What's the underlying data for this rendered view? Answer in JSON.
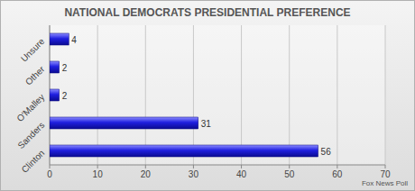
{
  "chart_data": {
    "type": "bar",
    "orientation": "horizontal",
    "title": "NATIONAL DEMOCRATS PRESIDENTIAL PREFERENCE",
    "categories": [
      "Unsure",
      "Other",
      "O'Malley",
      "Sanders",
      "Clinton"
    ],
    "values": [
      4,
      2,
      2,
      31,
      56
    ],
    "color": "#1f1fe0",
    "xlim": [
      0,
      70
    ],
    "xticks": [
      0,
      10,
      20,
      30,
      40,
      50,
      60,
      70
    ],
    "grid": true,
    "data_labels": true,
    "annotations": [
      "Fox News Poll"
    ]
  }
}
